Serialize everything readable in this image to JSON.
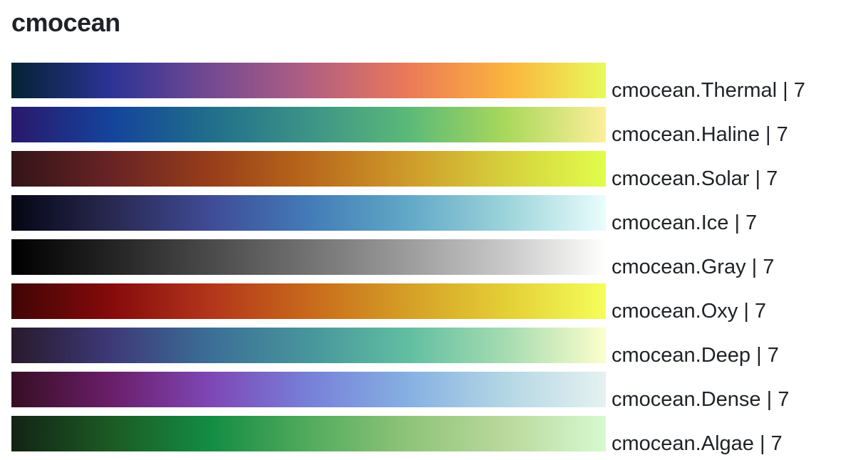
{
  "page": {
    "title": "cmocean"
  },
  "colorscales": [
    {
      "label": "cmocean.Thermal | 7",
      "colors": [
        "#042333",
        "#2c3395",
        "#744992",
        "#b15f82",
        "#eb7958",
        "#fbb43d",
        "#e8fa5b"
      ]
    },
    {
      "label": "cmocean.Haline | 7",
      "colors": [
        "#2a186c",
        "#14439c",
        "#206e8b",
        "#3c9387",
        "#5ab978",
        "#aad85c",
        "#fdef9a"
      ]
    },
    {
      "label": "cmocean.Solar | 7",
      "colors": [
        "#331418",
        "#682325",
        "#973d1a",
        "#b9681b",
        "#ce9b2a",
        "#d6d13d",
        "#e1fd4b"
      ]
    },
    {
      "label": "cmocean.Ice | 7",
      "colors": [
        "#040613",
        "#292851",
        "#3f4b96",
        "#427bb7",
        "#61a8c7",
        "#9cd4da",
        "#eafdfd"
      ]
    },
    {
      "label": "cmocean.Gray | 7",
      "colors": [
        "#000000",
        "#232323",
        "#4a4a4a",
        "#727272",
        "#9c9c9c",
        "#c9c9c9",
        "#fffffd"
      ]
    },
    {
      "label": "cmocean.Oxy | 7",
      "colors": [
        "#400505",
        "#850a0b",
        "#b2351b",
        "#c8691b",
        "#d59f26",
        "#e4cf36",
        "#f5fe5b"
      ]
    },
    {
      "label": "cmocean.Deep | 7",
      "colors": [
        "#281a2c",
        "#3d3977",
        "#3c6e97",
        "#47959c",
        "#61bea1",
        "#a6dcb1",
        "#fdfecc"
      ]
    },
    {
      "label": "cmocean.Dense | 7",
      "colors": [
        "#360e24",
        "#6a1e69",
        "#7e46b5",
        "#7780d8",
        "#85b0e2",
        "#b4d7e4",
        "#e6f1f1"
      ]
    },
    {
      "label": "cmocean.Algae | 7",
      "colors": [
        "#122414",
        "#1c5a23",
        "#138c43",
        "#52ab5d",
        "#8fc479",
        "#bad99d",
        "#d7f9d0"
      ]
    }
  ]
}
